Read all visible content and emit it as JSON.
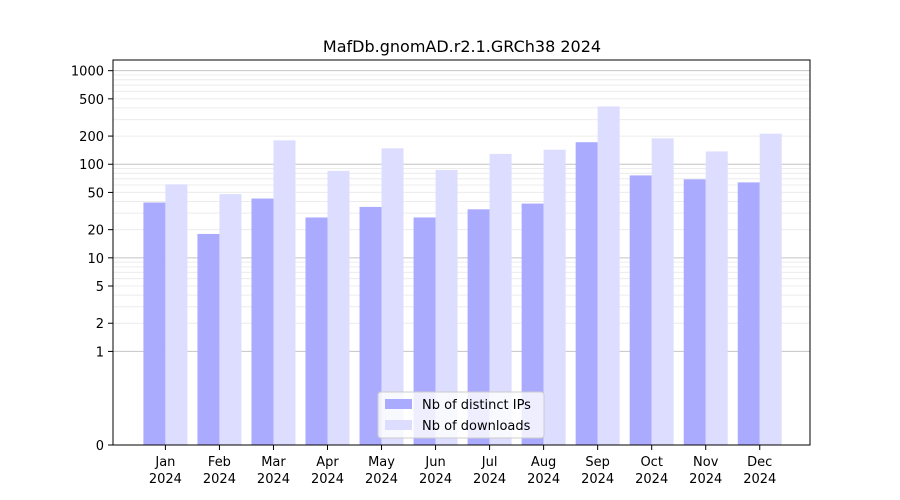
{
  "chart_data": {
    "type": "bar",
    "title": "MafDb.gnomAD.r2.1.GRCh38 2024",
    "xlabel": "",
    "ylabel": "",
    "yscale": "symlog",
    "ylim": [
      0,
      1300
    ],
    "yticks": [
      0,
      1,
      2,
      5,
      10,
      20,
      50,
      100,
      200,
      500,
      1000
    ],
    "grid": "horizontal",
    "legend_position": "bottom-center",
    "categories": [
      {
        "month": "Jan",
        "year": "2024"
      },
      {
        "month": "Feb",
        "year": "2024"
      },
      {
        "month": "Mar",
        "year": "2024"
      },
      {
        "month": "Apr",
        "year": "2024"
      },
      {
        "month": "May",
        "year": "2024"
      },
      {
        "month": "Jun",
        "year": "2024"
      },
      {
        "month": "Jul",
        "year": "2024"
      },
      {
        "month": "Aug",
        "year": "2024"
      },
      {
        "month": "Sep",
        "year": "2024"
      },
      {
        "month": "Oct",
        "year": "2024"
      },
      {
        "month": "Nov",
        "year": "2024"
      },
      {
        "month": "Dec",
        "year": "2024"
      }
    ],
    "series": [
      {
        "name": "Nb of distinct IPs",
        "color": "#aaaaff",
        "values": [
          39,
          18,
          43,
          27,
          35,
          27,
          33,
          38,
          172,
          76,
          69,
          64
        ]
      },
      {
        "name": "Nb of downloads",
        "color": "#ddddff",
        "values": [
          61,
          48,
          180,
          85,
          148,
          87,
          129,
          143,
          415,
          189,
          137,
          212
        ]
      }
    ]
  }
}
